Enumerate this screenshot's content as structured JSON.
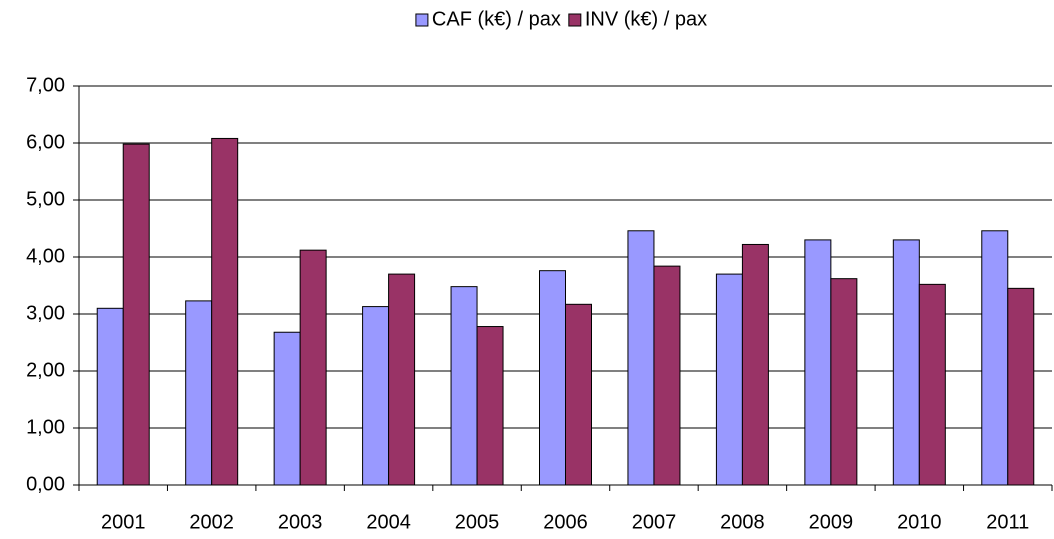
{
  "chart_data": {
    "type": "bar",
    "categories": [
      "2001",
      "2002",
      "2003",
      "2004",
      "2005",
      "2006",
      "2007",
      "2008",
      "2009",
      "2010",
      "2011"
    ],
    "series": [
      {
        "name": "CAF (k€) / pax",
        "color": "#9999ff",
        "values": [
          3.1,
          3.23,
          2.68,
          3.13,
          3.48,
          3.76,
          4.46,
          3.7,
          4.3,
          4.3,
          4.46
        ]
      },
      {
        "name": "INV (k€) / pax",
        "color": "#993366",
        "values": [
          5.98,
          6.08,
          4.12,
          3.7,
          2.78,
          3.17,
          3.84,
          4.22,
          3.62,
          3.52,
          3.45
        ]
      }
    ],
    "ylim": [
      0,
      7
    ],
    "yticks": [
      {
        "value": 0,
        "label": "0,00"
      },
      {
        "value": 1,
        "label": "1,00"
      },
      {
        "value": 2,
        "label": "2,00"
      },
      {
        "value": 3,
        "label": "3,00"
      },
      {
        "value": 4,
        "label": "4,00"
      },
      {
        "value": 5,
        "label": "5,00"
      },
      {
        "value": 6,
        "label": "6,00"
      },
      {
        "value": 7,
        "label": "7,00"
      }
    ],
    "grid": true,
    "legend": "top"
  }
}
